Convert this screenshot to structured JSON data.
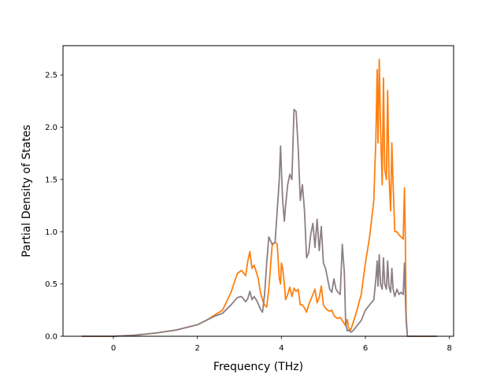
{
  "chart_data": {
    "type": "line",
    "title": "",
    "xlabel": "Frequency (THz)",
    "ylabel": "Partial Density of States",
    "xlim": [
      -1.2,
      8.1
    ],
    "ylim": [
      0,
      2.78
    ],
    "xticks": [
      0,
      2,
      4,
      6,
      8
    ],
    "xtick_labels": [
      "0",
      "2",
      "4",
      "6",
      "8"
    ],
    "yticks": [
      0.0,
      0.5,
      1.0,
      1.5,
      2.0,
      2.5
    ],
    "ytick_labels": [
      "0.0",
      "0.5",
      "1.0",
      "1.5",
      "2.0",
      "2.5"
    ],
    "grid": false,
    "legend": "none",
    "series": [
      {
        "color": "#ff7f0e",
        "x": [
          -0.75,
          0,
          0.5,
          1.0,
          1.5,
          2.0,
          2.2,
          2.4,
          2.6,
          2.8,
          2.95,
          3.05,
          3.15,
          3.2,
          3.25,
          3.3,
          3.35,
          3.4,
          3.45,
          3.5,
          3.55,
          3.6,
          3.65,
          3.7,
          3.78,
          3.85,
          3.9,
          3.95,
          3.98,
          4.0,
          4.03,
          4.07,
          4.1,
          4.15,
          4.2,
          4.25,
          4.3,
          4.35,
          4.4,
          4.45,
          4.5,
          4.55,
          4.6,
          4.65,
          4.7,
          4.75,
          4.8,
          4.85,
          4.9,
          4.95,
          5.0,
          5.05,
          5.1,
          5.15,
          5.2,
          5.25,
          5.3,
          5.35,
          5.4,
          5.45,
          5.5,
          5.53,
          5.57,
          5.6,
          5.65,
          5.7,
          5.8,
          5.9,
          6.0,
          6.1,
          6.2,
          6.25,
          6.28,
          6.3,
          6.33,
          6.36,
          6.4,
          6.43,
          6.46,
          6.5,
          6.53,
          6.56,
          6.6,
          6.63,
          6.66,
          6.7,
          6.75,
          6.8,
          6.85,
          6.9,
          6.93,
          6.95,
          6.97,
          7.0,
          7.02,
          7.05,
          7.7
        ],
        "y": [
          0.0,
          0.0,
          0.01,
          0.03,
          0.06,
          0.11,
          0.15,
          0.2,
          0.25,
          0.42,
          0.6,
          0.63,
          0.58,
          0.72,
          0.81,
          0.65,
          0.68,
          0.62,
          0.55,
          0.42,
          0.35,
          0.3,
          0.28,
          0.45,
          0.87,
          0.9,
          0.88,
          0.55,
          0.5,
          0.7,
          0.65,
          0.5,
          0.35,
          0.4,
          0.47,
          0.38,
          0.46,
          0.43,
          0.45,
          0.3,
          0.3,
          0.27,
          0.23,
          0.3,
          0.35,
          0.4,
          0.45,
          0.32,
          0.37,
          0.48,
          0.3,
          0.27,
          0.25,
          0.24,
          0.25,
          0.2,
          0.18,
          0.17,
          0.18,
          0.15,
          0.12,
          0.1,
          0.16,
          0.08,
          0.06,
          0.12,
          0.25,
          0.4,
          0.7,
          0.95,
          1.3,
          1.9,
          2.55,
          1.85,
          2.65,
          2.0,
          1.45,
          2.47,
          1.6,
          1.5,
          2.35,
          1.55,
          1.2,
          1.85,
          1.45,
          1.0,
          1.0,
          0.97,
          0.95,
          0.93,
          1.42,
          0.95,
          0.2,
          0.0,
          0.0,
          0.0,
          0.0
        ]
      },
      {
        "color": "#8c7f85",
        "x": [
          -0.75,
          0,
          0.5,
          1.0,
          1.5,
          2.0,
          2.2,
          2.4,
          2.6,
          2.8,
          2.95,
          3.05,
          3.15,
          3.2,
          3.25,
          3.3,
          3.35,
          3.4,
          3.45,
          3.5,
          3.55,
          3.6,
          3.65,
          3.7,
          3.78,
          3.85,
          3.9,
          3.95,
          3.98,
          4.0,
          4.03,
          4.07,
          4.1,
          4.15,
          4.2,
          4.25,
          4.3,
          4.35,
          4.4,
          4.45,
          4.5,
          4.55,
          4.6,
          4.65,
          4.7,
          4.75,
          4.8,
          4.85,
          4.9,
          4.95,
          5.0,
          5.05,
          5.1,
          5.15,
          5.2,
          5.25,
          5.3,
          5.35,
          5.4,
          5.45,
          5.5,
          5.53,
          5.57,
          5.6,
          5.65,
          5.7,
          5.8,
          5.9,
          6.0,
          6.1,
          6.2,
          6.25,
          6.28,
          6.3,
          6.33,
          6.36,
          6.4,
          6.43,
          6.46,
          6.5,
          6.53,
          6.56,
          6.6,
          6.63,
          6.66,
          6.7,
          6.75,
          6.8,
          6.85,
          6.9,
          6.93,
          6.95,
          6.97,
          7.0,
          7.02,
          7.05,
          7.7
        ],
        "y": [
          0.0,
          0.0,
          0.01,
          0.03,
          0.06,
          0.11,
          0.15,
          0.19,
          0.22,
          0.3,
          0.37,
          0.38,
          0.33,
          0.36,
          0.43,
          0.35,
          0.38,
          0.35,
          0.31,
          0.26,
          0.23,
          0.4,
          0.7,
          0.95,
          0.88,
          0.9,
          1.2,
          1.5,
          1.82,
          1.6,
          1.3,
          1.1,
          1.25,
          1.45,
          1.55,
          1.5,
          2.17,
          2.15,
          1.8,
          1.3,
          1.45,
          1.2,
          0.75,
          0.8,
          0.98,
          1.08,
          0.85,
          1.12,
          0.82,
          1.05,
          0.7,
          0.65,
          0.55,
          0.45,
          0.42,
          0.55,
          0.45,
          0.42,
          0.4,
          0.88,
          0.6,
          0.12,
          0.05,
          0.06,
          0.04,
          0.05,
          0.1,
          0.15,
          0.25,
          0.3,
          0.35,
          0.55,
          0.72,
          0.48,
          0.78,
          0.5,
          0.45,
          0.75,
          0.5,
          0.45,
          0.72,
          0.48,
          0.42,
          0.65,
          0.45,
          0.38,
          0.45,
          0.4,
          0.42,
          0.4,
          0.7,
          0.4,
          0.15,
          0.0,
          0.0,
          0.0,
          0.0
        ]
      }
    ]
  }
}
